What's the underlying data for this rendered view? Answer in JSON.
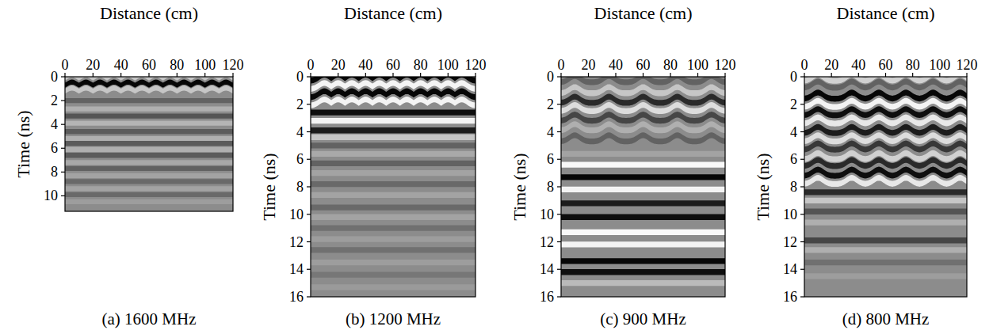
{
  "chart_data": [
    {
      "type": "radargram",
      "title": "(a) 1600 MHz",
      "x_label": "Distance (cm)",
      "y_label": "Time (ns)",
      "xlim": [
        0,
        120
      ],
      "xticks": [
        0,
        20,
        40,
        60,
        80,
        100,
        120
      ],
      "ylim": [
        0,
        11.3
      ],
      "yticks": [
        0,
        2,
        4,
        6,
        8,
        10
      ],
      "rebar_x": [
        5,
        15,
        25,
        35,
        45,
        55,
        65,
        75,
        85,
        95,
        105,
        115
      ],
      "arched_until": 1.6,
      "reflections": [
        {
          "time": 0.3,
          "amplitude": 0.5
        },
        {
          "time": 0.9,
          "amplitude": -0.95
        },
        {
          "time": 1.4,
          "amplitude": 0.5
        },
        {
          "time": 2.0,
          "amplitude": -0.3
        },
        {
          "time": 2.7,
          "amplitude": 0.3
        },
        {
          "time": 3.3,
          "amplitude": -0.4
        },
        {
          "time": 3.9,
          "amplitude": 0.35
        },
        {
          "time": 4.6,
          "amplitude": -0.35
        },
        {
          "time": 5.2,
          "amplitude": 0.3
        },
        {
          "time": 5.6,
          "amplitude": -0.35
        },
        {
          "time": 6.1,
          "amplitude": 0.3
        },
        {
          "time": 6.6,
          "amplitude": -0.35
        },
        {
          "time": 7.2,
          "amplitude": 0.25
        },
        {
          "time": 7.7,
          "amplitude": -0.3
        },
        {
          "time": 8.3,
          "amplitude": 0.2
        },
        {
          "time": 8.8,
          "amplitude": -0.25
        },
        {
          "time": 9.4,
          "amplitude": 0.2
        },
        {
          "time": 9.9,
          "amplitude": -0.25
        },
        {
          "time": 10.5,
          "amplitude": 0.15
        }
      ]
    },
    {
      "type": "radargram",
      "title": "(b) 1200 MHz",
      "x_label": "Distance (cm)",
      "y_label": "Time (ns)",
      "xlim": [
        0,
        120
      ],
      "xticks": [
        0,
        20,
        40,
        60,
        80,
        100,
        120
      ],
      "ylim": [
        0,
        16
      ],
      "yticks": [
        0,
        2,
        4,
        6,
        8,
        10,
        12,
        14,
        16
      ],
      "rebar_x": [
        10,
        20,
        30,
        40,
        50,
        60,
        70,
        80,
        90,
        100,
        110
      ],
      "arched_until": 2.4,
      "reflections": [
        {
          "time": 0.3,
          "amplitude": -0.95
        },
        {
          "time": 0.9,
          "amplitude": 0.9
        },
        {
          "time": 1.5,
          "amplitude": -0.95
        },
        {
          "time": 2.1,
          "amplitude": 0.9
        },
        {
          "time": 2.6,
          "amplitude": -0.9
        },
        {
          "time": 3.2,
          "amplitude": 0.9
        },
        {
          "time": 3.9,
          "amplitude": -0.8
        },
        {
          "time": 4.4,
          "amplitude": 0.5
        },
        {
          "time": 5.0,
          "amplitude": -0.3
        },
        {
          "time": 5.6,
          "amplitude": 0.25
        },
        {
          "time": 6.3,
          "amplitude": -0.3
        },
        {
          "time": 7.0,
          "amplitude": 0.2
        },
        {
          "time": 7.8,
          "amplitude": -0.25
        },
        {
          "time": 8.6,
          "amplitude": 0.2
        },
        {
          "time": 9.5,
          "amplitude": -0.25
        },
        {
          "time": 10.2,
          "amplitude": 0.2
        },
        {
          "time": 11.0,
          "amplitude": -0.2
        },
        {
          "time": 11.8,
          "amplitude": 0.15
        },
        {
          "time": 12.6,
          "amplitude": -0.2
        },
        {
          "time": 13.5,
          "amplitude": 0.15
        },
        {
          "time": 14.4,
          "amplitude": -0.15
        },
        {
          "time": 15.3,
          "amplitude": 0.12
        }
      ]
    },
    {
      "type": "radargram",
      "title": "(c) 900 MHz",
      "x_label": "Distance (cm)",
      "y_label": "Time (ns)",
      "xlim": [
        0,
        120
      ],
      "xticks": [
        0,
        20,
        40,
        60,
        80,
        100,
        120
      ],
      "ylim": [
        0,
        16
      ],
      "yticks": [
        0,
        2,
        4,
        6,
        8,
        10,
        12,
        14,
        16
      ],
      "rebar_x": [
        10,
        35,
        60,
        85,
        110
      ],
      "arched_until": 5,
      "reflections": [
        {
          "time": 0.4,
          "amplitude": -0.3
        },
        {
          "time": 1.2,
          "amplitude": 0.5
        },
        {
          "time": 1.9,
          "amplitude": -0.7
        },
        {
          "time": 2.5,
          "amplitude": 0.7
        },
        {
          "time": 3.2,
          "amplitude": -0.5
        },
        {
          "time": 3.9,
          "amplitude": 0.3
        },
        {
          "time": 4.7,
          "amplitude": -0.3
        },
        {
          "time": 5.6,
          "amplitude": 0.2
        },
        {
          "time": 6.4,
          "amplitude": 0.95
        },
        {
          "time": 7.3,
          "amplitude": -0.95
        },
        {
          "time": 8.2,
          "amplitude": 0.9
        },
        {
          "time": 9.2,
          "amplitude": -0.8
        },
        {
          "time": 10.2,
          "amplitude": -0.9
        },
        {
          "time": 11.3,
          "amplitude": 0.95
        },
        {
          "time": 12.2,
          "amplitude": 0.9
        },
        {
          "time": 13.4,
          "amplitude": -0.95
        },
        {
          "time": 14.2,
          "amplitude": -0.9
        },
        {
          "time": 15.0,
          "amplitude": 0.4
        }
      ]
    },
    {
      "type": "radargram",
      "title": "(d) 800 MHz",
      "x_label": "Distance (cm)",
      "y_label": "Time (ns)",
      "xlim": [
        0,
        120
      ],
      "xticks": [
        0,
        20,
        40,
        60,
        80,
        100,
        120
      ],
      "ylim": [
        0,
        16
      ],
      "yticks": [
        0,
        2,
        4,
        6,
        8,
        10,
        12,
        14,
        16
      ],
      "rebar_x": [
        10,
        35,
        55,
        75,
        95,
        115
      ],
      "arched_until": 8,
      "reflections": [
        {
          "time": 0.3,
          "amplitude": 0.6
        },
        {
          "time": 0.8,
          "amplitude": -0.3
        },
        {
          "time": 1.6,
          "amplitude": -0.95
        },
        {
          "time": 2.2,
          "amplitude": 0.9
        },
        {
          "time": 2.8,
          "amplitude": -0.9
        },
        {
          "time": 3.4,
          "amplitude": 0.8
        },
        {
          "time": 4.1,
          "amplitude": -0.8
        },
        {
          "time": 4.7,
          "amplitude": 0.7
        },
        {
          "time": 5.3,
          "amplitude": -0.6
        },
        {
          "time": 6.0,
          "amplitude": 0.6
        },
        {
          "time": 6.5,
          "amplitude": -0.7
        },
        {
          "time": 7.2,
          "amplitude": -0.9
        },
        {
          "time": 7.8,
          "amplitude": 0.8
        },
        {
          "time": 8.4,
          "amplitude": -0.7
        },
        {
          "time": 9.0,
          "amplitude": 0.5
        },
        {
          "time": 9.8,
          "amplitude": -0.4
        },
        {
          "time": 10.6,
          "amplitude": 0.3
        },
        {
          "time": 11.9,
          "amplitude": -0.5
        },
        {
          "time": 12.6,
          "amplitude": 0.3
        },
        {
          "time": 13.5,
          "amplitude": -0.2
        },
        {
          "time": 14.5,
          "amplitude": 0.15
        }
      ]
    }
  ]
}
